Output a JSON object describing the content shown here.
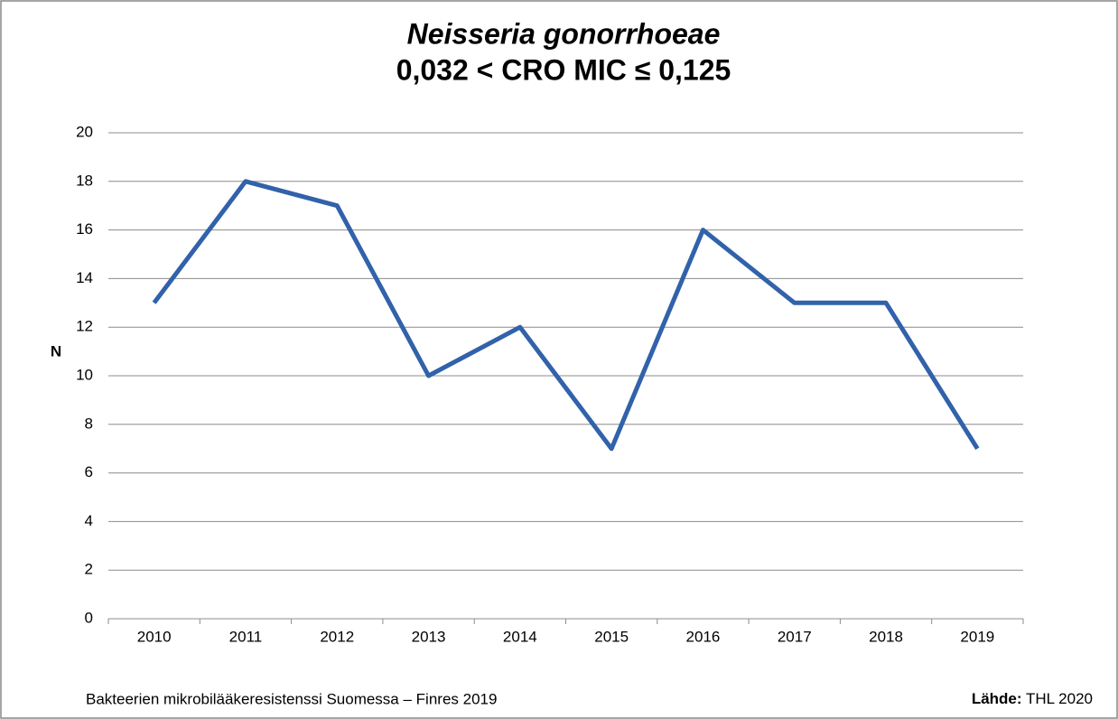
{
  "chart_data": {
    "type": "line",
    "title": "Neisseria gonorrhoeae",
    "subtitle": "0,032 < CRO MIC ≤ 0,125",
    "y_label": "N",
    "categories": [
      "2010",
      "2011",
      "2012",
      "2013",
      "2014",
      "2015",
      "2016",
      "2017",
      "2018",
      "2019"
    ],
    "values": [
      13,
      18,
      17,
      10,
      12,
      7,
      16,
      13,
      13,
      7
    ],
    "color": "#3162aa",
    "ylim": [
      0,
      20
    ],
    "yticks": [
      0,
      2,
      4,
      6,
      8,
      10,
      12,
      14,
      16,
      18,
      20
    ],
    "grid": true,
    "footer": "Bakteerien mikrobilääkeresistenssi Suomessa – Finres 2019",
    "source_label": "Lähde:",
    "source": "THL 2020"
  }
}
